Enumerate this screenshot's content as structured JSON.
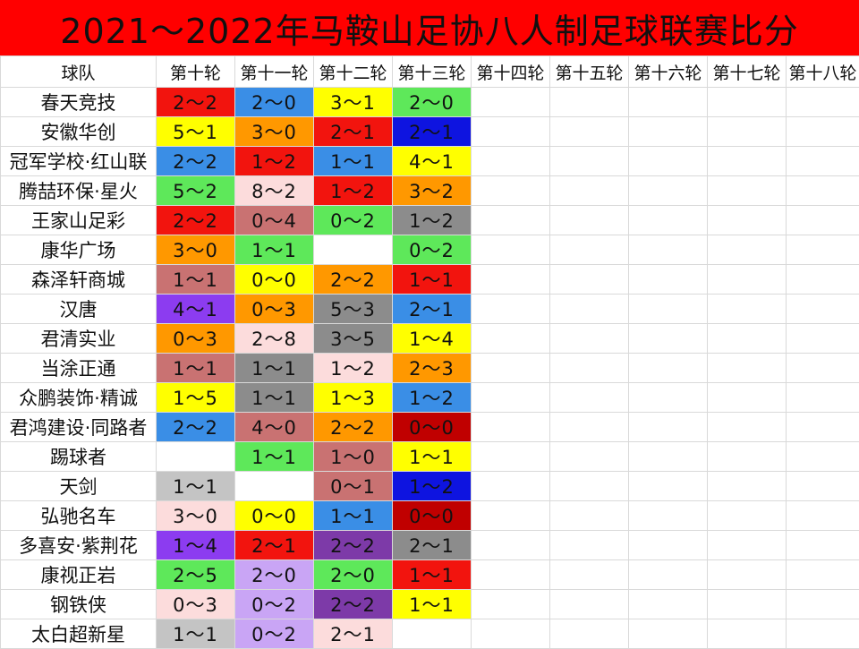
{
  "title": "2021～2022年马鞍山足协八人制足球联赛比分",
  "header": [
    "球队",
    "第十轮",
    "第十一轮",
    "第十二轮",
    "第十三轮",
    "第十四轮",
    "第十五轮",
    "第十六轮",
    "第十七轮",
    "第十八轮"
  ],
  "colors": {
    "R": "#f2140e",
    "B": "#3a8ee6",
    "Y": "#ffff00",
    "G": "#5ee85a",
    "O": "#ff9800",
    "P": "#fcdcdc",
    "S": "#c97272",
    "D": "#8c8c8c",
    "V": "#8c3cf0",
    "L": "#c9a5f5",
    "K": "#7d3aa8",
    "N": "#0e14e0",
    "M": "#c00000",
    "H": "#c4c4c4",
    "W": "#ffffff"
  },
  "rows": [
    {
      "team": "春天竞技",
      "cells": [
        {
          "t": "2～2",
          "c": "R"
        },
        {
          "t": "2～0",
          "c": "B"
        },
        {
          "t": "3～1",
          "c": "Y"
        },
        {
          "t": "2～0",
          "c": "G"
        }
      ]
    },
    {
      "team": "安徽华创",
      "cells": [
        {
          "t": "5～1",
          "c": "Y"
        },
        {
          "t": "3～0",
          "c": "O"
        },
        {
          "t": "2～1",
          "c": "R"
        },
        {
          "t": "2～1",
          "c": "N"
        }
      ]
    },
    {
      "team": "冠军学校·红山联",
      "cells": [
        {
          "t": "2～2",
          "c": "B"
        },
        {
          "t": "1～2",
          "c": "R"
        },
        {
          "t": "1～1",
          "c": "B"
        },
        {
          "t": "4～1",
          "c": "Y"
        }
      ]
    },
    {
      "team": "腾喆环保·星火",
      "cells": [
        {
          "t": "5～2",
          "c": "G"
        },
        {
          "t": "8～2",
          "c": "P"
        },
        {
          "t": "1～2",
          "c": "R"
        },
        {
          "t": "3～2",
          "c": "O"
        }
      ]
    },
    {
      "team": "王家山足彩",
      "cells": [
        {
          "t": "2～2",
          "c": "R"
        },
        {
          "t": "0～4",
          "c": "S"
        },
        {
          "t": "0～2",
          "c": "G"
        },
        {
          "t": "1～2",
          "c": "D"
        }
      ]
    },
    {
      "team": "康华广场",
      "cells": [
        {
          "t": "3～0",
          "c": "O"
        },
        {
          "t": "1～1",
          "c": "G"
        },
        {
          "t": "",
          "c": "W"
        },
        {
          "t": "0～2",
          "c": "G"
        }
      ]
    },
    {
      "team": "森泽轩商城",
      "cells": [
        {
          "t": "1～1",
          "c": "S"
        },
        {
          "t": "0～0",
          "c": "Y"
        },
        {
          "t": "2～2",
          "c": "O"
        },
        {
          "t": "1～1",
          "c": "R"
        }
      ]
    },
    {
      "team": "汉唐",
      "cells": [
        {
          "t": "4～1",
          "c": "V"
        },
        {
          "t": "0～3",
          "c": "O"
        },
        {
          "t": "5～3",
          "c": "D"
        },
        {
          "t": "2～1",
          "c": "B"
        }
      ]
    },
    {
      "team": "君清实业",
      "cells": [
        {
          "t": "0～3",
          "c": "O"
        },
        {
          "t": "2～8",
          "c": "P"
        },
        {
          "t": "3～5",
          "c": "D"
        },
        {
          "t": "1～4",
          "c": "Y"
        }
      ]
    },
    {
      "team": "当涂正通",
      "cells": [
        {
          "t": "1～1",
          "c": "S"
        },
        {
          "t": "1～1",
          "c": "D"
        },
        {
          "t": "1～2",
          "c": "P"
        },
        {
          "t": "2～3",
          "c": "O"
        }
      ]
    },
    {
      "team": "众鹏装饰·精诚",
      "cells": [
        {
          "t": "1～5",
          "c": "Y"
        },
        {
          "t": "1～1",
          "c": "D"
        },
        {
          "t": "1～3",
          "c": "Y"
        },
        {
          "t": "1～2",
          "c": "B"
        }
      ]
    },
    {
      "team": "君鸿建设·同路者",
      "cells": [
        {
          "t": "2～2",
          "c": "B"
        },
        {
          "t": "4～0",
          "c": "S"
        },
        {
          "t": "2～2",
          "c": "O"
        },
        {
          "t": "0～0",
          "c": "M"
        }
      ]
    },
    {
      "team": "踢球者",
      "cells": [
        {
          "t": "",
          "c": "W"
        },
        {
          "t": "1～1",
          "c": "G"
        },
        {
          "t": "1～0",
          "c": "S"
        },
        {
          "t": "1～1",
          "c": "Y"
        }
      ]
    },
    {
      "team": "天剑",
      "cells": [
        {
          "t": "1～1",
          "c": "H"
        },
        {
          "t": "",
          "c": "W"
        },
        {
          "t": "0～1",
          "c": "S"
        },
        {
          "t": "1～2",
          "c": "N"
        }
      ]
    },
    {
      "team": "弘驰名车",
      "cells": [
        {
          "t": "3～0",
          "c": "P"
        },
        {
          "t": "0～0",
          "c": "Y"
        },
        {
          "t": "1～1",
          "c": "B"
        },
        {
          "t": "0～0",
          "c": "M"
        }
      ]
    },
    {
      "team": "多喜安·紫荆花",
      "cells": [
        {
          "t": "1～4",
          "c": "V"
        },
        {
          "t": "2～1",
          "c": "R"
        },
        {
          "t": "2～2",
          "c": "K"
        },
        {
          "t": "2～1",
          "c": "D"
        }
      ]
    },
    {
      "team": "康视正岩",
      "cells": [
        {
          "t": "2～5",
          "c": "G"
        },
        {
          "t": "2～0",
          "c": "L"
        },
        {
          "t": "2～0",
          "c": "G"
        },
        {
          "t": "1～1",
          "c": "R"
        }
      ]
    },
    {
      "team": "钢铁侠",
      "cells": [
        {
          "t": "0～3",
          "c": "P"
        },
        {
          "t": "0～2",
          "c": "L"
        },
        {
          "t": "2～2",
          "c": "K"
        },
        {
          "t": "1～1",
          "c": "Y"
        }
      ]
    },
    {
      "team": "太白超新星",
      "cells": [
        {
          "t": "1～1",
          "c": "H"
        },
        {
          "t": "0～2",
          "c": "L"
        },
        {
          "t": "2～1",
          "c": "P"
        },
        {
          "t": "",
          "c": "W"
        }
      ]
    }
  ]
}
